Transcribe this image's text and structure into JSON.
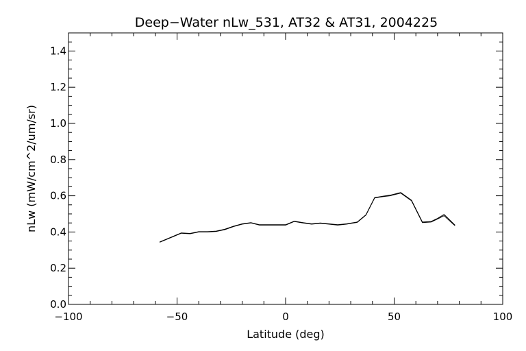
{
  "chart_data": {
    "type": "line",
    "title": "Deep−Water nLw_531, AT32 & AT31, 2004225",
    "xlabel": "Latitude (deg)",
    "ylabel": "nLw (mW/cm^2/um/sr)",
    "xlim": [
      -100,
      100
    ],
    "ylim": [
      0.0,
      1.5
    ],
    "x_ticks": [
      -100,
      -50,
      0,
      50,
      100
    ],
    "x_tick_labels": [
      "−100",
      "−50",
      "0",
      "50",
      "100"
    ],
    "y_ticks": [
      0.0,
      0.2,
      0.4,
      0.6,
      0.8,
      1.0,
      1.2,
      1.4
    ],
    "y_tick_labels": [
      "0.0",
      "0.2",
      "0.4",
      "0.6",
      "0.8",
      "1.0",
      "1.2",
      "1.4"
    ],
    "grid": false,
    "series": [
      {
        "x": [
          -58,
          -53,
          -48,
          -44,
          -40,
          -36,
          -32,
          -28,
          -24,
          -20,
          -16,
          -12,
          -8,
          -4,
          0,
          4,
          8,
          12,
          16,
          20,
          24,
          28,
          33,
          37,
          41,
          45,
          48,
          53,
          58,
          63,
          67,
          70,
          73,
          78
        ],
        "y": [
          0.345,
          0.37,
          0.395,
          0.392,
          0.402,
          0.402,
          0.405,
          0.415,
          0.432,
          0.445,
          0.452,
          0.44,
          0.44,
          0.44,
          0.44,
          0.46,
          0.452,
          0.445,
          0.45,
          0.445,
          0.44,
          0.445,
          0.455,
          0.495,
          0.59,
          0.598,
          0.603,
          0.618,
          0.575,
          0.455,
          0.458,
          0.475,
          0.497,
          0.438
        ]
      },
      {
        "x": [
          -58,
          -53,
          -48,
          -44,
          -40,
          -36,
          -32,
          -28,
          -24,
          -20,
          -16,
          -12,
          -8,
          -4,
          0,
          4,
          8,
          12,
          16,
          20,
          24,
          28,
          33,
          37,
          41,
          45,
          48,
          53,
          58,
          63,
          67,
          70,
          73,
          78
        ],
        "y": [
          0.343,
          0.368,
          0.393,
          0.39,
          0.4,
          0.4,
          0.403,
          0.413,
          0.43,
          0.443,
          0.45,
          0.438,
          0.438,
          0.438,
          0.438,
          0.458,
          0.45,
          0.443,
          0.448,
          0.443,
          0.438,
          0.443,
          0.453,
          0.493,
          0.588,
          0.596,
          0.6,
          0.615,
          0.572,
          0.452,
          0.455,
          0.472,
          0.49,
          0.435
        ]
      }
    ]
  }
}
